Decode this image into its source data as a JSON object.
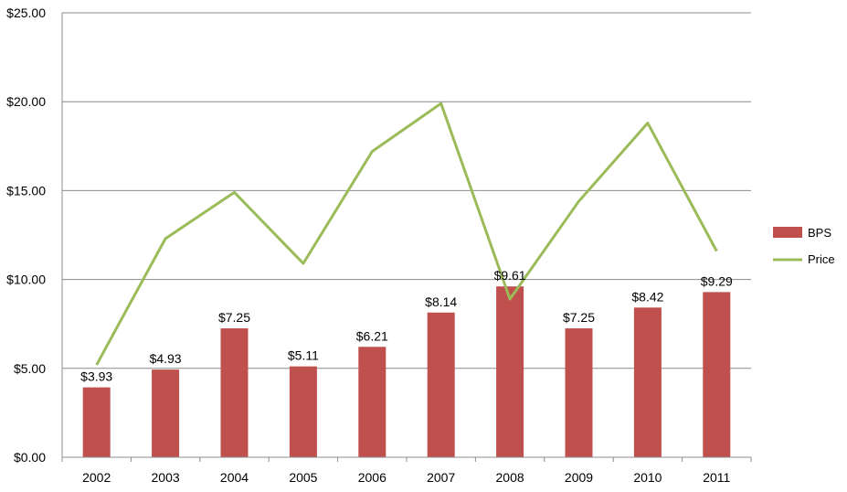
{
  "chart_data": {
    "type": "bar",
    "categories": [
      "2002",
      "2003",
      "2004",
      "2005",
      "2006",
      "2007",
      "2008",
      "2009",
      "2010",
      "2011"
    ],
    "series": [
      {
        "name": "BPS",
        "type": "bar",
        "color": "#C0504D",
        "values": [
          3.93,
          4.93,
          7.25,
          5.11,
          6.21,
          8.14,
          9.61,
          7.25,
          8.42,
          9.29
        ],
        "labels": [
          "$3.93",
          "$4.93",
          "$7.25",
          "$5.11",
          "$6.21",
          "$8.14",
          "$9.61",
          "$7.25",
          "$8.42",
          "$9.29"
        ]
      },
      {
        "name": "Price",
        "type": "line",
        "color": "#9BBB59",
        "values": [
          5.2,
          12.3,
          14.9,
          10.9,
          17.2,
          19.9,
          8.9,
          14.4,
          18.8,
          11.6
        ]
      }
    ],
    "ylim": [
      0,
      25
    ],
    "yticks": [
      0,
      5,
      10,
      15,
      20,
      25
    ],
    "ytick_labels": [
      "$0.00",
      "$5.00",
      "$10.00",
      "$15.00",
      "$20.00",
      "$25.00"
    ],
    "grid": true,
    "legend": "right",
    "title": "",
    "xlabel": "",
    "ylabel": ""
  }
}
